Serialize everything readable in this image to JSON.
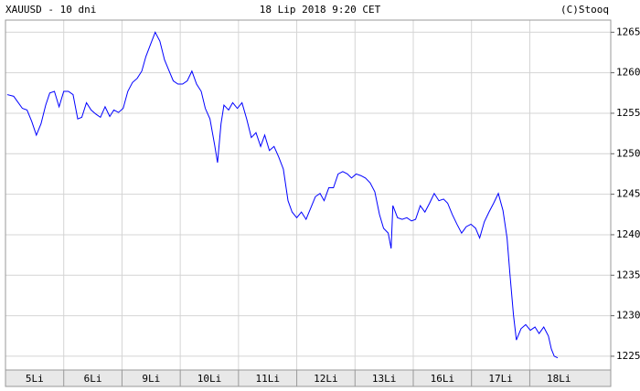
{
  "chart_data": {
    "type": "line",
    "title": "XAUUSD - 10 dni",
    "subtitle": "18 Lip 2018 9:20 CET",
    "source": "(C)Stooq",
    "categories": [
      "5Li",
      "6Li",
      "9Li",
      "10Li",
      "11Li",
      "12Li",
      "13Li",
      "16Li",
      "17Li",
      "18Li"
    ],
    "x": [
      0.03,
      0.14,
      0.22,
      0.29,
      0.37,
      0.45,
      0.53,
      0.61,
      0.69,
      0.76,
      0.84,
      0.92,
      1.0,
      1.08,
      1.16,
      1.24,
      1.31,
      1.39,
      1.47,
      1.55,
      1.63,
      1.71,
      1.79,
      1.86,
      1.94,
      2.02,
      2.1,
      2.18,
      2.26,
      2.34,
      2.41,
      2.49,
      2.57,
      2.65,
      2.73,
      2.81,
      2.88,
      2.96,
      3.04,
      3.12,
      3.2,
      3.28,
      3.36,
      3.43,
      3.51,
      3.59,
      3.64,
      3.7,
      3.75,
      3.83,
      3.9,
      3.98,
      4.06,
      4.14,
      4.22,
      4.3,
      4.38,
      4.45,
      4.53,
      4.61,
      4.69,
      4.77,
      4.85,
      4.92,
      5.0,
      5.08,
      5.16,
      5.24,
      5.32,
      5.4,
      5.47,
      5.55,
      5.63,
      5.71,
      5.79,
      5.87,
      5.94,
      6.02,
      6.1,
      6.18,
      6.26,
      6.34,
      6.42,
      6.49,
      6.57,
      6.62,
      6.65,
      6.73,
      6.81,
      6.89,
      6.97,
      7.04,
      7.12,
      7.2,
      7.28,
      7.36,
      7.44,
      7.52,
      7.59,
      7.67,
      7.75,
      7.83,
      7.91,
      7.99,
      8.07,
      8.14,
      8.22,
      8.3,
      8.38,
      8.46,
      8.54,
      8.61,
      8.66,
      8.72,
      8.77,
      8.85,
      8.93,
      9.01,
      9.09,
      9.16,
      9.24,
      9.32,
      9.37,
      9.42,
      9.48
    ],
    "series": [
      {
        "name": "XAUUSD",
        "color": "#0000ff",
        "values": [
          1257.3,
          1257.1,
          1256.3,
          1255.6,
          1255.4,
          1254.0,
          1252.3,
          1253.7,
          1256.0,
          1257.5,
          1257.7,
          1255.8,
          1257.7,
          1257.7,
          1257.3,
          1254.3,
          1254.5,
          1256.3,
          1255.4,
          1254.9,
          1254.5,
          1255.8,
          1254.6,
          1255.4,
          1255.1,
          1255.6,
          1257.7,
          1258.8,
          1259.3,
          1260.2,
          1262.0,
          1263.5,
          1265.0,
          1263.9,
          1261.6,
          1260.2,
          1259.0,
          1258.6,
          1258.6,
          1259.0,
          1260.2,
          1258.6,
          1257.7,
          1255.6,
          1254.3,
          1251.1,
          1248.9,
          1253.7,
          1256.0,
          1255.4,
          1256.3,
          1255.6,
          1256.3,
          1254.3,
          1252.0,
          1252.6,
          1250.9,
          1252.3,
          1250.4,
          1250.9,
          1249.6,
          1248.1,
          1244.2,
          1242.8,
          1242.1,
          1242.8,
          1241.9,
          1243.3,
          1244.7,
          1245.1,
          1244.2,
          1245.8,
          1245.8,
          1247.5,
          1247.8,
          1247.5,
          1247.0,
          1247.5,
          1247.3,
          1247.0,
          1246.4,
          1245.3,
          1242.5,
          1240.8,
          1240.2,
          1238.3,
          1243.6,
          1242.1,
          1241.9,
          1242.1,
          1241.7,
          1241.9,
          1243.6,
          1242.8,
          1243.9,
          1245.1,
          1244.2,
          1244.4,
          1243.9,
          1242.5,
          1241.3,
          1240.2,
          1241.0,
          1241.3,
          1240.8,
          1239.6,
          1241.6,
          1242.8,
          1243.9,
          1245.1,
          1243.0,
          1239.6,
          1235.1,
          1230.1,
          1227.0,
          1228.4,
          1228.9,
          1228.2,
          1228.6,
          1227.8,
          1228.6,
          1227.5,
          1225.9,
          1225.0,
          1224.8
        ]
      }
    ],
    "xlim": [
      0,
      10.39
    ],
    "xticks": [
      1,
      2,
      3,
      4,
      5,
      6,
      7,
      8,
      9
    ],
    "ylim": [
      1223.3,
      1266.5
    ],
    "yticks": [
      1225,
      1230,
      1235,
      1240,
      1245,
      1250,
      1255,
      1260,
      1265
    ],
    "grid": true
  }
}
